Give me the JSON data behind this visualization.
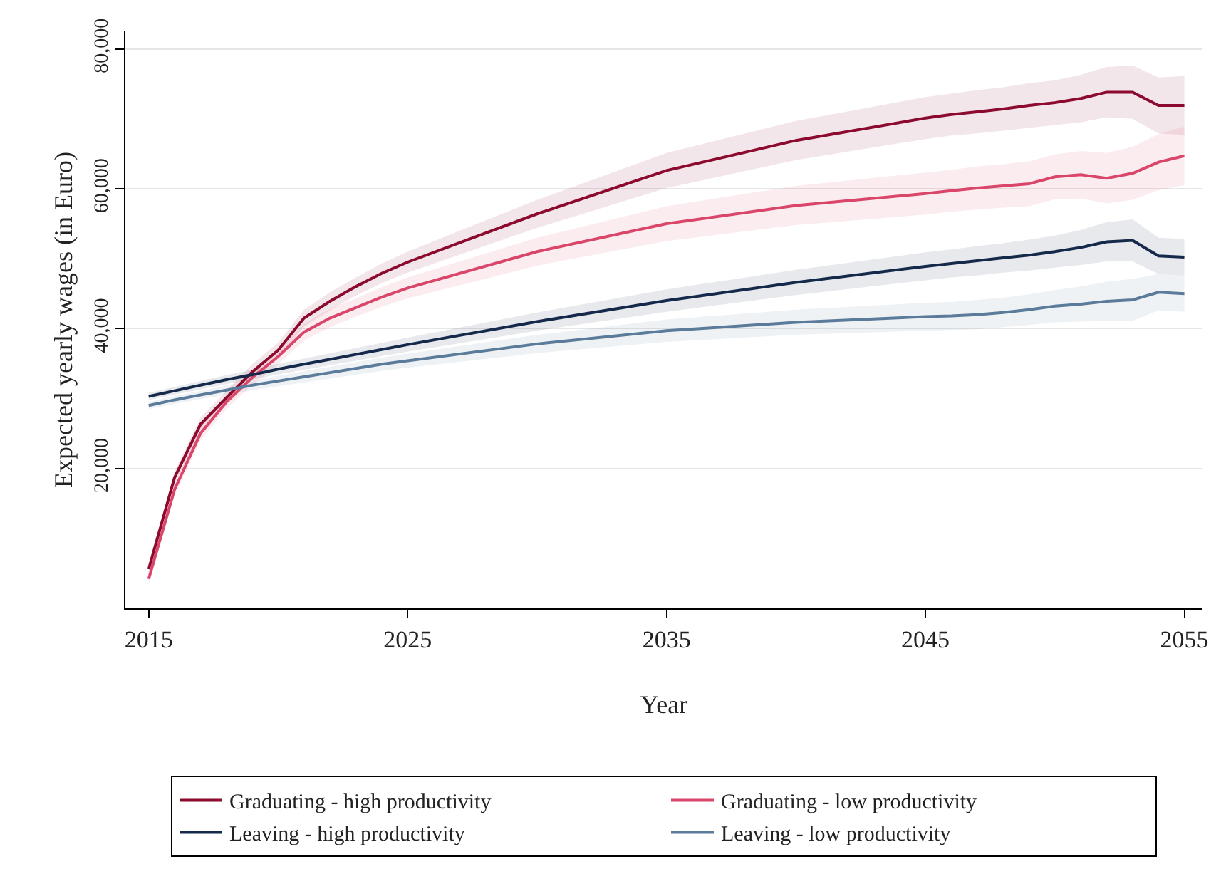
{
  "chart_data": {
    "type": "line",
    "xlabel": "Year",
    "ylabel": "Expected yearly wages (in Euro)",
    "x": [
      2015,
      2016,
      2017,
      2018,
      2019,
      2020,
      2021,
      2022,
      2023,
      2024,
      2025,
      2030,
      2035,
      2040,
      2045,
      2046,
      2047,
      2048,
      2049,
      2050,
      2051,
      2052,
      2053,
      2054,
      2055
    ],
    "xlim": [
      2014.1,
      2055.7
    ],
    "xticks": [
      2015,
      2025,
      2035,
      2045,
      2055
    ],
    "ylim": [
      0,
      82500
    ],
    "yticks": [
      {
        "value": 20000,
        "label": "20,000"
      },
      {
        "value": 40000,
        "label": "40,000"
      },
      {
        "value": 60000,
        "label": "60,000"
      },
      {
        "value": 80000,
        "label": "80,000"
      }
    ],
    "grid": "y",
    "legend": "bottom",
    "line_style": "solid",
    "marker": "none",
    "series": [
      {
        "name": "Graduating - high productivity",
        "color": "#8b0a2e",
        "values": [
          5600,
          18700,
          26300,
          30100,
          33800,
          36900,
          41500,
          43900,
          46000,
          47900,
          49500,
          56400,
          62600,
          66900,
          70100,
          70600,
          71000,
          71400,
          71900,
          72300,
          72900,
          73800,
          73800,
          71900,
          71900
        ],
        "lower": [
          4800,
          17800,
          25300,
          29100,
          32700,
          35800,
          40300,
          42600,
          44700,
          46500,
          48000,
          54400,
          60100,
          64100,
          67100,
          67600,
          67900,
          68300,
          68700,
          69100,
          69500,
          70200,
          70000,
          67900,
          67700
        ],
        "upper": [
          6400,
          19600,
          27300,
          31100,
          34900,
          38000,
          42700,
          45200,
          47300,
          49300,
          51000,
          58400,
          65100,
          69700,
          73100,
          73600,
          74100,
          74500,
          75100,
          75500,
          76300,
          77400,
          77600,
          75900,
          76100
        ]
      },
      {
        "name": "Graduating - low productivity",
        "color": "#d9466a",
        "values": [
          4200,
          17000,
          25000,
          29500,
          33000,
          36000,
          39500,
          41500,
          43000,
          44500,
          45800,
          51000,
          55000,
          57600,
          59300,
          59700,
          60100,
          60400,
          60700,
          61700,
          62000,
          61500,
          62200,
          63800,
          64700
        ],
        "lower": [
          3400,
          16100,
          24000,
          28500,
          31900,
          34900,
          38300,
          40200,
          41700,
          43100,
          44300,
          49000,
          52500,
          54800,
          56300,
          56700,
          57000,
          57300,
          57500,
          58500,
          58600,
          57900,
          58400,
          59800,
          60500
        ],
        "upper": [
          5000,
          17900,
          26000,
          30500,
          34100,
          37100,
          40700,
          42800,
          44300,
          45900,
          47300,
          53000,
          57500,
          60400,
          62300,
          62700,
          63200,
          63500,
          63900,
          64900,
          65400,
          65100,
          66000,
          67800,
          68900
        ]
      },
      {
        "name": "Leaving - high productivity",
        "color": "#152a4a",
        "values": [
          30300,
          31100,
          31900,
          32700,
          33400,
          34200,
          34900,
          35600,
          36300,
          37000,
          37700,
          41000,
          44000,
          46600,
          48900,
          49300,
          49700,
          50100,
          50500,
          51000,
          51600,
          52400,
          52600,
          50400,
          50200
        ],
        "lower": [
          29800,
          30550,
          31300,
          32050,
          32700,
          33450,
          34100,
          34750,
          35400,
          36050,
          36700,
          39700,
          42400,
          44800,
          46900,
          47300,
          47600,
          48000,
          48300,
          48700,
          49100,
          49600,
          49600,
          47800,
          47600
        ],
        "upper": [
          30800,
          31650,
          32500,
          33350,
          34100,
          34950,
          35700,
          36450,
          37200,
          37950,
          38700,
          42300,
          45600,
          48400,
          50900,
          51300,
          51800,
          52200,
          52700,
          53300,
          54100,
          55200,
          55600,
          53000,
          52800
        ]
      },
      {
        "name": "Leaving - low productivity",
        "color": "#5b7b9a",
        "values": [
          29000,
          29800,
          30500,
          31200,
          31900,
          32500,
          33100,
          33700,
          34300,
          34900,
          35400,
          37800,
          39700,
          40900,
          41700,
          41800,
          42000,
          42300,
          42700,
          43200,
          43500,
          43900,
          44100,
          45200,
          45000
        ],
        "lower": [
          28500,
          29250,
          29900,
          30550,
          31200,
          31750,
          32300,
          32850,
          33400,
          33950,
          34400,
          36500,
          38100,
          39100,
          39700,
          39800,
          39900,
          40200,
          40500,
          40900,
          41000,
          41100,
          41100,
          42600,
          42400
        ],
        "upper": [
          29500,
          30350,
          31100,
          31850,
          32600,
          33250,
          33900,
          34550,
          35200,
          35850,
          36400,
          39100,
          41300,
          42700,
          43700,
          43800,
          44100,
          44400,
          44900,
          45500,
          46000,
          46700,
          47100,
          47800,
          47600
        ]
      }
    ]
  }
}
